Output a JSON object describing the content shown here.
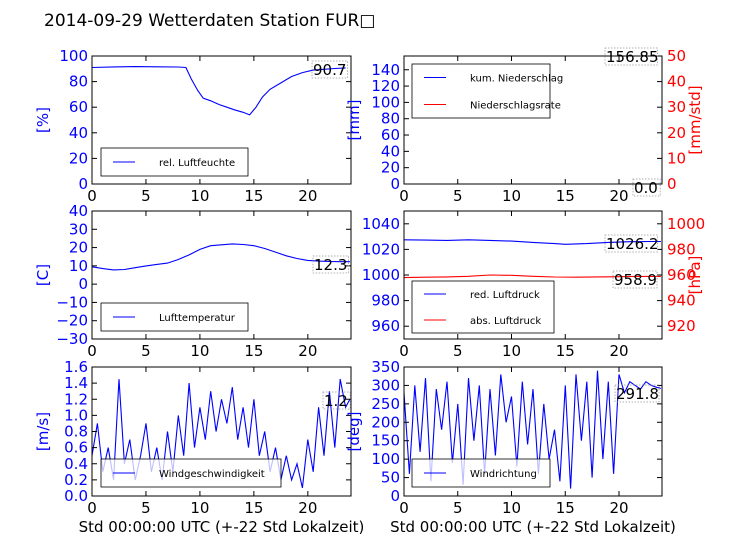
{
  "title": "2014-09-29 Wetterdaten Station FUR□",
  "colors": {
    "primary": "#0000ff",
    "secondary": "#ff0000",
    "axes": "#000000"
  },
  "chart_data": [
    {
      "id": "humidity",
      "type": "line",
      "xlim": [
        0,
        24
      ],
      "xticks": [
        "0",
        "5",
        "10",
        "15",
        "20"
      ],
      "ylim": [
        0,
        100
      ],
      "yticks": [
        "0",
        "20",
        "40",
        "60",
        "80",
        "100"
      ],
      "ylabel": "[%]",
      "ylabel_color": "#0000ff",
      "annotation": "90.7",
      "legend": {
        "placement": "lower-left",
        "entries": [
          "rel. Luftfeuchte"
        ]
      },
      "series": [
        {
          "name": "rel. Luftfeuchte",
          "color": "#0000ff",
          "x": [
            0,
            2,
            4,
            6,
            8,
            8.7,
            9.2,
            9.8,
            10.3,
            11,
            11.8,
            12.5,
            13.2,
            14,
            14.6,
            15.2,
            15.8,
            16.5,
            17.5,
            18.5,
            19.5,
            20.5,
            21.5,
            22.5,
            23.5
          ],
          "y": [
            91,
            91.5,
            91.7,
            91.6,
            91.4,
            91,
            82,
            73,
            67,
            65,
            62,
            60,
            58,
            56,
            54,
            60,
            68,
            74,
            79,
            84,
            87,
            89,
            89.6,
            90.2,
            90.7
          ]
        }
      ]
    },
    {
      "id": "precip",
      "type": "line",
      "xlim": [
        0,
        24
      ],
      "xticks": [
        "0",
        "5",
        "10",
        "15",
        "20"
      ],
      "ylim": [
        0,
        156.85
      ],
      "yticks": [
        "0",
        "20",
        "40",
        "60",
        "80",
        "100",
        "120",
        "140"
      ],
      "ylabel": "[mm]",
      "ylabel_color": "#0000ff",
      "y2lim": [
        0,
        50
      ],
      "y2ticks": [
        "0",
        "10",
        "20",
        "30",
        "40",
        "50"
      ],
      "y2label": "[mm/std]",
      "y2label_color": "#ff0000",
      "annotations": [
        "156.85",
        "0.0"
      ],
      "legend": {
        "placement": "top-left",
        "entries": [
          "kum. Niederschlag",
          "Niederschlagsrate"
        ]
      },
      "series": [
        {
          "name": "kum. Niederschlag",
          "color": "#0000ff",
          "axis": "left",
          "x": [
            0,
            23.9
          ],
          "y": [
            0,
            0
          ]
        },
        {
          "name": "Niederschlagsrate",
          "color": "#ff0000",
          "axis": "right",
          "x": [
            0,
            23.9
          ],
          "y": [
            0,
            0
          ]
        }
      ]
    },
    {
      "id": "temperature",
      "type": "line",
      "xlim": [
        0,
        24
      ],
      "xticks": [
        "0",
        "5",
        "10",
        "15",
        "20"
      ],
      "ylim": [
        -30,
        40
      ],
      "yticks": [
        "−30",
        "−20",
        "−10",
        "0",
        "10",
        "20",
        "30",
        "40"
      ],
      "ylabel": "[C]",
      "ylabel_color": "#0000ff",
      "annotation": "12.3",
      "legend": {
        "placement": "lower-left",
        "entries": [
          "Lufttemperatur"
        ]
      },
      "series": [
        {
          "name": "Lufttemperatur",
          "color": "#0000ff",
          "x": [
            0,
            1,
            2,
            3,
            4,
            5,
            6,
            7,
            8,
            9,
            10,
            11,
            12,
            13,
            14,
            15,
            16,
            17,
            18,
            19,
            20,
            21,
            22,
            23,
            23.9
          ],
          "y": [
            9.5,
            8.5,
            7.8,
            8,
            9,
            10,
            10.8,
            11.5,
            13.5,
            16,
            19,
            21,
            21.5,
            22,
            21.7,
            21,
            19.5,
            17.5,
            15.5,
            14,
            13,
            12.6,
            12.4,
            12.3,
            12.3
          ]
        }
      ]
    },
    {
      "id": "pressure",
      "type": "line",
      "xlim": [
        0,
        24
      ],
      "xticks": [
        "0",
        "5",
        "10",
        "15",
        "20"
      ],
      "ylim": [
        950,
        1050
      ],
      "yticks": [
        "960",
        "980",
        "1000",
        "1020",
        "1040"
      ],
      "y2lim": [
        910,
        1010
      ],
      "y2ticks": [
        "920",
        "940",
        "960",
        "980",
        "1000"
      ],
      "y2label": "[hPa]",
      "y2label_color": "#ff0000",
      "annotations": [
        "1026.2",
        "958.9"
      ],
      "legend": {
        "placement": "lower-left",
        "entries": [
          "red. Luftdruck",
          "abs. Luftdruck"
        ]
      },
      "series": [
        {
          "name": "red. Luftdruck",
          "color": "#0000ff",
          "axis": "left",
          "x": [
            0,
            2,
            4,
            6,
            8,
            10,
            12,
            14,
            15,
            17,
            19,
            21,
            23,
            23.9
          ],
          "y": [
            1027.5,
            1027.3,
            1027,
            1027.5,
            1027,
            1026.5,
            1025.5,
            1024.5,
            1024,
            1024.5,
            1025.5,
            1026,
            1026.2,
            1026.2
          ]
        },
        {
          "name": "abs. Luftdruck",
          "color": "#ff0000",
          "axis": "right",
          "x": [
            0,
            2,
            4,
            6,
            8,
            10,
            12,
            14,
            16,
            18,
            20,
            22,
            23.9
          ],
          "y": [
            958,
            958.3,
            958.5,
            959,
            960,
            959.8,
            959,
            958.4,
            958.3,
            958.5,
            958.7,
            958.9,
            958.9
          ]
        }
      ]
    },
    {
      "id": "windspeed",
      "type": "line",
      "xlim": [
        0,
        24
      ],
      "xticks": [
        "0",
        "5",
        "10",
        "15",
        "20"
      ],
      "xlabel": "Std 00:00:00 UTC (+-22 Std Lokalzeit)",
      "ylim": [
        0,
        1.6
      ],
      "yticks": [
        "0.0",
        "0.2",
        "0.4",
        "0.6",
        "0.8",
        "1.0",
        "1.2",
        "1.4",
        "1.6"
      ],
      "ylabel": "[m/s]",
      "ylabel_color": "#0000ff",
      "annotation": "1.2",
      "legend": {
        "placement": "lower-left",
        "entries": [
          "Windgeschwindigkeit"
        ]
      },
      "series": [
        {
          "name": "Windgeschwindigkeit",
          "color": "#0000ff",
          "x": [
            0.0,
            0.5,
            1.0,
            1.5,
            2.0,
            2.5,
            3.0,
            3.5,
            4.0,
            4.5,
            5.0,
            5.5,
            6.0,
            6.5,
            7.0,
            7.5,
            8.0,
            8.5,
            9.0,
            9.5,
            10.0,
            10.5,
            11.0,
            11.5,
            12.0,
            12.5,
            13.0,
            13.5,
            14.0,
            14.5,
            15.0,
            15.5,
            16.0,
            16.5,
            17.0,
            17.5,
            18.0,
            18.5,
            19.0,
            19.5,
            20.0,
            20.5,
            21.0,
            21.5,
            22.0,
            22.5,
            23.0,
            23.5,
            23.9
          ],
          "y": [
            0.5,
            0.9,
            0.3,
            0.6,
            0.2,
            1.45,
            0.4,
            0.7,
            0.2,
            0.5,
            0.9,
            0.3,
            0.6,
            0.2,
            0.8,
            0.3,
            1.0,
            0.5,
            1.4,
            0.6,
            1.1,
            0.7,
            1.3,
            0.8,
            1.2,
            0.9,
            1.35,
            0.7,
            1.1,
            0.6,
            1.2,
            0.5,
            0.8,
            0.3,
            0.6,
            0.2,
            0.5,
            0.2,
            0.4,
            0.1,
            0.7,
            0.3,
            1.1,
            0.5,
            1.3,
            0.6,
            1.45,
            1.1,
            1.2
          ]
        }
      ]
    },
    {
      "id": "winddir",
      "type": "line",
      "xlim": [
        0,
        24
      ],
      "xticks": [
        "0",
        "5",
        "10",
        "15",
        "20"
      ],
      "xlabel": "Std 00:00:00 UTC (+-22 Std Lokalzeit)",
      "ylim": [
        0,
        350
      ],
      "yticks": [
        "0",
        "50",
        "100",
        "150",
        "200",
        "250",
        "300",
        "350"
      ],
      "ylabel": "[deg]",
      "ylabel_color": "#0000ff",
      "annotation": "291.8",
      "legend": {
        "placement": "lower-left",
        "entries": [
          "Windrichtung"
        ]
      },
      "series": [
        {
          "name": "Windrichtung",
          "color": "#0000ff",
          "x": [
            0.0,
            0.5,
            1.0,
            1.5,
            2.0,
            2.5,
            3.0,
            3.5,
            4.0,
            4.5,
            5.0,
            5.5,
            6.0,
            6.5,
            7.0,
            7.5,
            8.0,
            8.5,
            9.0,
            9.5,
            10.0,
            10.5,
            11.0,
            11.5,
            12.0,
            12.5,
            13.0,
            13.5,
            14.0,
            14.5,
            15.0,
            15.5,
            16.0,
            16.5,
            17.0,
            17.5,
            18.0,
            18.5,
            19.0,
            19.5,
            20.0,
            20.5,
            21.0,
            21.5,
            22.0,
            22.5,
            23.0,
            23.5,
            23.9
          ],
          "y": [
            280,
            60,
            300,
            120,
            320,
            40,
            290,
            180,
            310,
            90,
            250,
            30,
            320,
            150,
            300,
            60,
            290,
            110,
            330,
            200,
            270,
            80,
            310,
            140,
            290,
            60,
            250,
            100,
            180,
            40,
            300,
            20,
            330,
            150,
            310,
            50,
            340,
            100,
            310,
            60,
            330,
            280,
            310,
            300,
            290,
            310,
            300,
            295,
            292
          ]
        }
      ]
    }
  ]
}
